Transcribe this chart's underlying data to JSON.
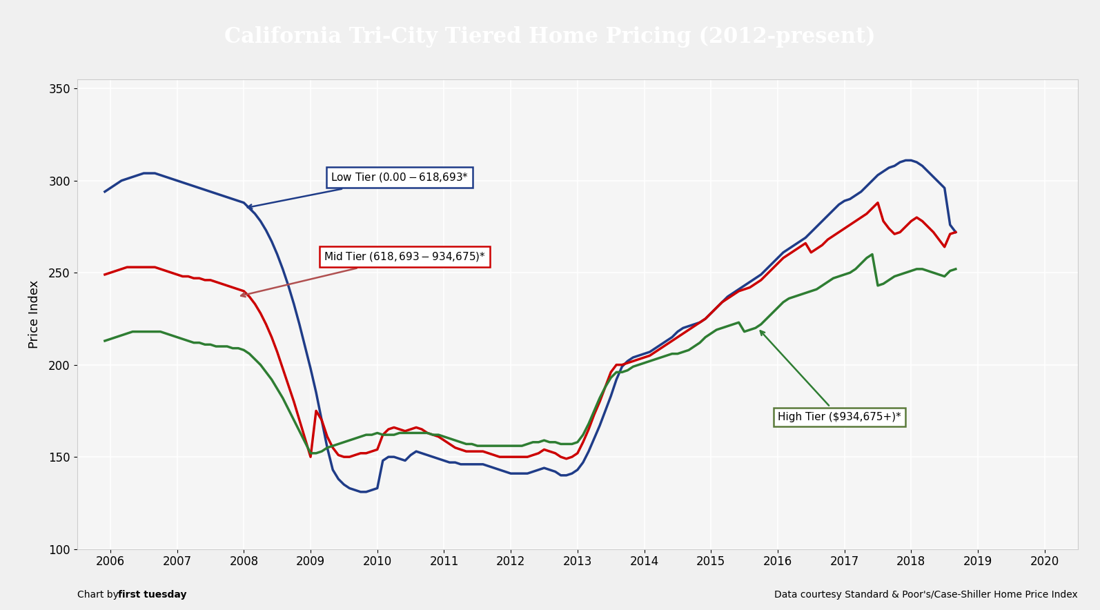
{
  "title": "California Tri-City Tiered Home Pricing (2012-present)",
  "title_bg": "#404040",
  "title_color": "#ffffff",
  "ylabel": "Price Index",
  "ylim": [
    100,
    355
  ],
  "xlim": [
    2005.5,
    2020.5
  ],
  "yticks": [
    100,
    150,
    200,
    250,
    300,
    350
  ],
  "xticks": [
    2006,
    2007,
    2008,
    2009,
    2010,
    2011,
    2012,
    2013,
    2014,
    2015,
    2016,
    2017,
    2018,
    2019,
    2020
  ],
  "footer_left": "Chart by first tuesday",
  "footer_right": "Data courtesy Standard & Poor's/Case-Shiller Home Price Index",
  "low_tier_color": "#1f3c88",
  "mid_tier_color": "#cc0000",
  "high_tier_color": "#2e7d32",
  "low_tier_label": "Low Tier ($0.00 - $618,693*",
  "mid_tier_label": "Mid Tier ($618,693 - $934,675)*",
  "high_tier_label": "High Tier ($934,675+)*",
  "low_tier_x": [
    2005.917,
    2006.0,
    2006.083,
    2006.167,
    2006.25,
    2006.333,
    2006.417,
    2006.5,
    2006.583,
    2006.667,
    2006.75,
    2006.833,
    2006.917,
    2007.0,
    2007.083,
    2007.167,
    2007.25,
    2007.333,
    2007.417,
    2007.5,
    2007.583,
    2007.667,
    2007.75,
    2007.833,
    2007.917,
    2008.0,
    2008.083,
    2008.167,
    2008.25,
    2008.333,
    2008.417,
    2008.5,
    2008.583,
    2008.667,
    2008.75,
    2008.833,
    2008.917,
    2009.0,
    2009.083,
    2009.167,
    2009.25,
    2009.333,
    2009.417,
    2009.5,
    2009.583,
    2009.667,
    2009.75,
    2009.833,
    2009.917,
    2010.0,
    2010.083,
    2010.167,
    2010.25,
    2010.333,
    2010.417,
    2010.5,
    2010.583,
    2010.667,
    2010.75,
    2010.833,
    2010.917,
    2011.0,
    2011.083,
    2011.167,
    2011.25,
    2011.333,
    2011.417,
    2011.5,
    2011.583,
    2011.667,
    2011.75,
    2011.833,
    2011.917,
    2012.0,
    2012.083,
    2012.167,
    2012.25,
    2012.333,
    2012.417,
    2012.5,
    2012.583,
    2012.667,
    2012.75,
    2012.833,
    2012.917,
    2013.0,
    2013.083,
    2013.167,
    2013.25,
    2013.333,
    2013.417,
    2013.5,
    2013.583,
    2013.667,
    2013.75,
    2013.833,
    2013.917,
    2014.0,
    2014.083,
    2014.167,
    2014.25,
    2014.333,
    2014.417,
    2014.5,
    2014.583,
    2014.667,
    2014.75,
    2014.833,
    2014.917,
    2015.0,
    2015.083,
    2015.167,
    2015.25,
    2015.333,
    2015.417,
    2015.5,
    2015.583,
    2015.667,
    2015.75,
    2015.833,
    2015.917,
    2016.0,
    2016.083,
    2016.167,
    2016.25,
    2016.333,
    2016.417,
    2016.5,
    2016.583,
    2016.667,
    2016.75,
    2016.833,
    2016.917,
    2017.0,
    2017.083,
    2017.167,
    2017.25,
    2017.333,
    2017.417,
    2017.5,
    2017.583,
    2017.667,
    2017.75,
    2017.833,
    2017.917,
    2018.0,
    2018.083,
    2018.167,
    2018.25,
    2018.333,
    2018.417,
    2018.5,
    2018.583,
    2018.667,
    2018.75,
    2018.833,
    2018.917,
    2019.0
  ],
  "low_tier_y": [
    294,
    296,
    298,
    300,
    301,
    302,
    303,
    304,
    304,
    304,
    303,
    302,
    301,
    300,
    299,
    298,
    297,
    296,
    295,
    294,
    293,
    292,
    291,
    290,
    289,
    288,
    285,
    282,
    278,
    273,
    267,
    260,
    252,
    243,
    233,
    222,
    210,
    198,
    185,
    170,
    155,
    143,
    138,
    135,
    133,
    132,
    131,
    131,
    132,
    133,
    148,
    150,
    150,
    149,
    148,
    151,
    153,
    152,
    151,
    150,
    149,
    148,
    147,
    147,
    146,
    146,
    146,
    146,
    146,
    145,
    144,
    143,
    142,
    141,
    141,
    141,
    141,
    142,
    143,
    144,
    143,
    142,
    140,
    140,
    141,
    143,
    147,
    153,
    160,
    167,
    175,
    183,
    192,
    199,
    202,
    204,
    205,
    206,
    207,
    209,
    211,
    213,
    215,
    218,
    220,
    221,
    222,
    223,
    225,
    228,
    231,
    234,
    237,
    239,
    241,
    243,
    245,
    247,
    249,
    252,
    255,
    258,
    261,
    263,
    265,
    267,
    269,
    272,
    275,
    278,
    281,
    284,
    287,
    289,
    290,
    292,
    294,
    297,
    300,
    303,
    305,
    307,
    308,
    310,
    311,
    311,
    310,
    308,
    305,
    302,
    299,
    296,
    276,
    272
  ],
  "mid_tier_x": [
    2005.917,
    2006.0,
    2006.083,
    2006.167,
    2006.25,
    2006.333,
    2006.417,
    2006.5,
    2006.583,
    2006.667,
    2006.75,
    2006.833,
    2006.917,
    2007.0,
    2007.083,
    2007.167,
    2007.25,
    2007.333,
    2007.417,
    2007.5,
    2007.583,
    2007.667,
    2007.75,
    2007.833,
    2007.917,
    2008.0,
    2008.083,
    2008.167,
    2008.25,
    2008.333,
    2008.417,
    2008.5,
    2008.583,
    2008.667,
    2008.75,
    2008.833,
    2008.917,
    2009.0,
    2009.083,
    2009.167,
    2009.25,
    2009.333,
    2009.417,
    2009.5,
    2009.583,
    2009.667,
    2009.75,
    2009.833,
    2009.917,
    2010.0,
    2010.083,
    2010.167,
    2010.25,
    2010.333,
    2010.417,
    2010.5,
    2010.583,
    2010.667,
    2010.75,
    2010.833,
    2010.917,
    2011.0,
    2011.083,
    2011.167,
    2011.25,
    2011.333,
    2011.417,
    2011.5,
    2011.583,
    2011.667,
    2011.75,
    2011.833,
    2011.917,
    2012.0,
    2012.083,
    2012.167,
    2012.25,
    2012.333,
    2012.417,
    2012.5,
    2012.583,
    2012.667,
    2012.75,
    2012.833,
    2012.917,
    2013.0,
    2013.083,
    2013.167,
    2013.25,
    2013.333,
    2013.417,
    2013.5,
    2013.583,
    2013.667,
    2013.75,
    2013.833,
    2013.917,
    2014.0,
    2014.083,
    2014.167,
    2014.25,
    2014.333,
    2014.417,
    2014.5,
    2014.583,
    2014.667,
    2014.75,
    2014.833,
    2014.917,
    2015.0,
    2015.083,
    2015.167,
    2015.25,
    2015.333,
    2015.417,
    2015.5,
    2015.583,
    2015.667,
    2015.75,
    2015.833,
    2015.917,
    2016.0,
    2016.083,
    2016.167,
    2016.25,
    2016.333,
    2016.417,
    2016.5,
    2016.583,
    2016.667,
    2016.75,
    2016.833,
    2016.917,
    2017.0,
    2017.083,
    2017.167,
    2017.25,
    2017.333,
    2017.417,
    2017.5,
    2017.583,
    2017.667,
    2017.75,
    2017.833,
    2017.917,
    2018.0,
    2018.083,
    2018.167,
    2018.25,
    2018.333,
    2018.417,
    2018.5,
    2018.583,
    2018.667,
    2018.75,
    2018.833,
    2018.917,
    2019.0
  ],
  "mid_tier_y": [
    249,
    250,
    251,
    252,
    253,
    253,
    253,
    253,
    253,
    253,
    252,
    251,
    250,
    249,
    248,
    248,
    247,
    247,
    246,
    246,
    245,
    244,
    243,
    242,
    241,
    240,
    237,
    233,
    228,
    222,
    215,
    207,
    198,
    189,
    180,
    170,
    160,
    150,
    175,
    170,
    161,
    155,
    151,
    150,
    150,
    151,
    152,
    152,
    153,
    154,
    162,
    165,
    166,
    165,
    164,
    165,
    166,
    165,
    163,
    162,
    161,
    159,
    157,
    155,
    154,
    153,
    153,
    153,
    153,
    152,
    151,
    150,
    150,
    150,
    150,
    150,
    150,
    151,
    152,
    154,
    153,
    152,
    150,
    149,
    150,
    152,
    158,
    165,
    173,
    180,
    188,
    196,
    200,
    200,
    201,
    202,
    203,
    204,
    205,
    207,
    209,
    211,
    213,
    215,
    217,
    219,
    221,
    223,
    225,
    228,
    231,
    234,
    236,
    238,
    240,
    241,
    242,
    244,
    246,
    249,
    252,
    255,
    258,
    260,
    262,
    264,
    266,
    261,
    263,
    265,
    268,
    270,
    272,
    274,
    276,
    278,
    280,
    282,
    285,
    288,
    278,
    274,
    271,
    272,
    275,
    278,
    280,
    278,
    275,
    272,
    268,
    264,
    271,
    272
  ],
  "high_tier_x": [
    2005.917,
    2006.0,
    2006.083,
    2006.167,
    2006.25,
    2006.333,
    2006.417,
    2006.5,
    2006.583,
    2006.667,
    2006.75,
    2006.833,
    2006.917,
    2007.0,
    2007.083,
    2007.167,
    2007.25,
    2007.333,
    2007.417,
    2007.5,
    2007.583,
    2007.667,
    2007.75,
    2007.833,
    2007.917,
    2008.0,
    2008.083,
    2008.167,
    2008.25,
    2008.333,
    2008.417,
    2008.5,
    2008.583,
    2008.667,
    2008.75,
    2008.833,
    2008.917,
    2009.0,
    2009.083,
    2009.167,
    2009.25,
    2009.333,
    2009.417,
    2009.5,
    2009.583,
    2009.667,
    2009.75,
    2009.833,
    2009.917,
    2010.0,
    2010.083,
    2010.167,
    2010.25,
    2010.333,
    2010.417,
    2010.5,
    2010.583,
    2010.667,
    2010.75,
    2010.833,
    2010.917,
    2011.0,
    2011.083,
    2011.167,
    2011.25,
    2011.333,
    2011.417,
    2011.5,
    2011.583,
    2011.667,
    2011.75,
    2011.833,
    2011.917,
    2012.0,
    2012.083,
    2012.167,
    2012.25,
    2012.333,
    2012.417,
    2012.5,
    2012.583,
    2012.667,
    2012.75,
    2012.833,
    2012.917,
    2013.0,
    2013.083,
    2013.167,
    2013.25,
    2013.333,
    2013.417,
    2013.5,
    2013.583,
    2013.667,
    2013.75,
    2013.833,
    2013.917,
    2014.0,
    2014.083,
    2014.167,
    2014.25,
    2014.333,
    2014.417,
    2014.5,
    2014.583,
    2014.667,
    2014.75,
    2014.833,
    2014.917,
    2015.0,
    2015.083,
    2015.167,
    2015.25,
    2015.333,
    2015.417,
    2015.5,
    2015.583,
    2015.667,
    2015.75,
    2015.833,
    2015.917,
    2016.0,
    2016.083,
    2016.167,
    2016.25,
    2016.333,
    2016.417,
    2016.5,
    2016.583,
    2016.667,
    2016.75,
    2016.833,
    2016.917,
    2017.0,
    2017.083,
    2017.167,
    2017.25,
    2017.333,
    2017.417,
    2017.5,
    2017.583,
    2017.667,
    2017.75,
    2017.833,
    2017.917,
    2018.0,
    2018.083,
    2018.167,
    2018.25,
    2018.333,
    2018.417,
    2018.5,
    2018.583,
    2018.667,
    2018.75,
    2018.833,
    2018.917,
    2019.0
  ],
  "high_tier_y": [
    213,
    214,
    215,
    216,
    217,
    218,
    218,
    218,
    218,
    218,
    218,
    217,
    216,
    215,
    214,
    213,
    212,
    212,
    211,
    211,
    210,
    210,
    210,
    209,
    209,
    208,
    206,
    203,
    200,
    196,
    192,
    187,
    182,
    176,
    170,
    164,
    158,
    152,
    152,
    153,
    155,
    156,
    157,
    158,
    159,
    160,
    161,
    162,
    162,
    163,
    162,
    162,
    162,
    163,
    163,
    163,
    163,
    163,
    163,
    162,
    162,
    161,
    160,
    159,
    158,
    157,
    157,
    156,
    156,
    156,
    156,
    156,
    156,
    156,
    156,
    156,
    157,
    158,
    158,
    159,
    158,
    158,
    157,
    157,
    157,
    158,
    162,
    168,
    175,
    182,
    188,
    193,
    196,
    196,
    197,
    199,
    200,
    201,
    202,
    203,
    204,
    205,
    206,
    206,
    207,
    208,
    210,
    212,
    215,
    217,
    219,
    220,
    221,
    222,
    223,
    218,
    219,
    220,
    222,
    225,
    228,
    231,
    234,
    236,
    237,
    238,
    239,
    240,
    241,
    243,
    245,
    247,
    248,
    249,
    250,
    252,
    255,
    258,
    260,
    243,
    244,
    246,
    248,
    249,
    250,
    251,
    252,
    252,
    251,
    250,
    249,
    248,
    251,
    252
  ]
}
